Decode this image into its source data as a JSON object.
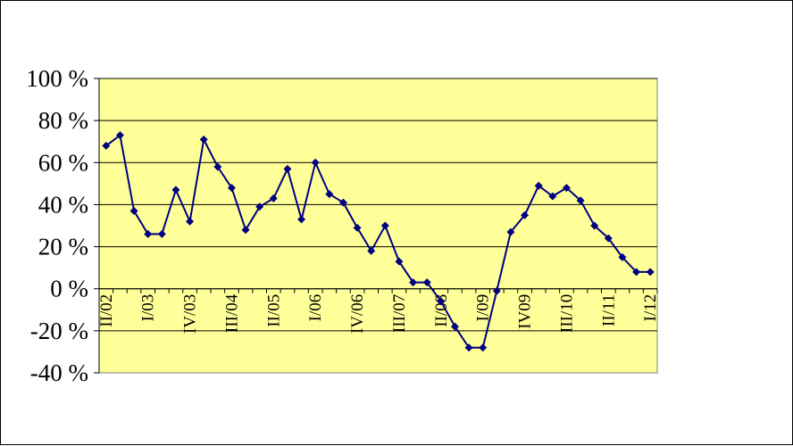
{
  "chart_data": {
    "type": "line",
    "title": "",
    "xlabel": "",
    "ylabel": "",
    "ylim": [
      -40,
      100
    ],
    "y_ticks": [
      {
        "value": 100,
        "label": "100 %"
      },
      {
        "value": 80,
        "label": "80 %"
      },
      {
        "value": 60,
        "label": "60 %"
      },
      {
        "value": 40,
        "label": "40 %"
      },
      {
        "value": 20,
        "label": "20 %"
      },
      {
        "value": 0,
        "label": "0 %"
      },
      {
        "value": -20,
        "label": "-20 %"
      },
      {
        "value": -40,
        "label": "-40 %"
      }
    ],
    "x_tick_labels": [
      {
        "index": 0,
        "label": "II/02"
      },
      {
        "index": 3,
        "label": "I/03"
      },
      {
        "index": 6,
        "label": "IV/03"
      },
      {
        "index": 9,
        "label": "III/04"
      },
      {
        "index": 12,
        "label": "II/05"
      },
      {
        "index": 15,
        "label": "I/06"
      },
      {
        "index": 18,
        "label": "IV/06"
      },
      {
        "index": 21,
        "label": "III/07"
      },
      {
        "index": 24,
        "label": "II/08"
      },
      {
        "index": 27,
        "label": "I/09"
      },
      {
        "index": 30,
        "label": "IV09"
      },
      {
        "index": 33,
        "label": "III/10"
      },
      {
        "index": 36,
        "label": "II/11"
      },
      {
        "index": 39,
        "label": "I/12"
      }
    ],
    "grid": true,
    "plot_background": "#ffff99",
    "series_color": "#000080",
    "marker": "diamond",
    "series": [
      {
        "values": [
          68,
          73,
          37,
          26,
          26,
          47,
          32,
          71,
          58,
          48,
          28,
          39,
          43,
          57,
          33,
          60,
          45,
          41,
          29,
          18,
          30,
          13,
          3,
          3,
          -6,
          -18,
          -28,
          -28,
          -1,
          27,
          35,
          49,
          44,
          48,
          42,
          30,
          24,
          15,
          8,
          8
        ]
      }
    ]
  }
}
